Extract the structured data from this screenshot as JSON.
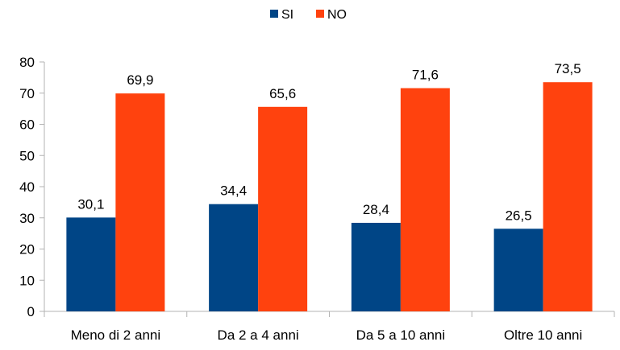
{
  "chart_data": {
    "type": "bar",
    "title": "",
    "xlabel": "",
    "ylabel": "",
    "categories": [
      "Meno di 2 anni",
      "Da 2 a 4 anni",
      "Da 5 a 10 anni",
      "Oltre 10 anni"
    ],
    "series": [
      {
        "name": "SI",
        "color": "#004586",
        "values": [
          30.1,
          34.4,
          28.4,
          26.5
        ],
        "labels": [
          "30,1",
          "34,4",
          "28,4",
          "26,5"
        ]
      },
      {
        "name": "NO",
        "color": "#FF420E",
        "values": [
          69.9,
          65.6,
          71.6,
          73.5
        ],
        "labels": [
          "69,9",
          "65,6",
          "71,6",
          "73,5"
        ]
      }
    ],
    "ylim": [
      0,
      80
    ],
    "yticks": [
      "0",
      "10",
      "20",
      "30",
      "40",
      "50",
      "60",
      "70",
      "80"
    ],
    "grid": false,
    "legend": "top-center"
  }
}
